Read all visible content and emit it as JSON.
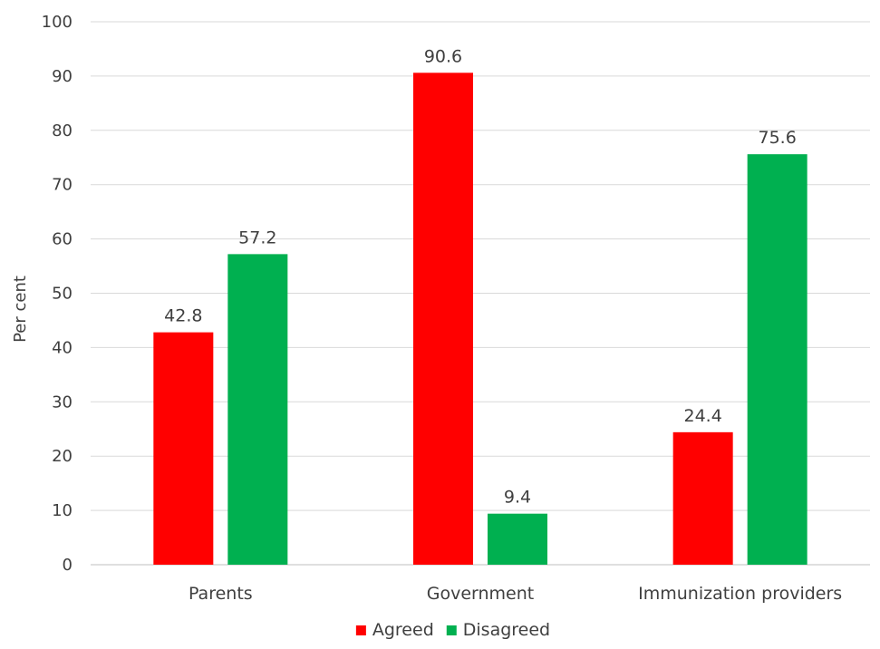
{
  "chart_data": {
    "type": "bar",
    "title": "",
    "xlabel": "",
    "ylabel": "Per cent",
    "ylim": [
      0,
      100
    ],
    "yticks": [
      0,
      10,
      20,
      30,
      40,
      50,
      60,
      70,
      80,
      90,
      100
    ],
    "categories": [
      "Parents",
      "Government",
      "Immunization providers"
    ],
    "series": [
      {
        "name": "Agreed",
        "color": "#ff0000",
        "values": [
          42.8,
          90.6,
          24.4
        ]
      },
      {
        "name": "Disagreed",
        "color": "#00b050",
        "values": [
          57.2,
          9.4,
          75.6
        ]
      }
    ],
    "grid": true,
    "data_labels": true,
    "legend": "bottom"
  }
}
